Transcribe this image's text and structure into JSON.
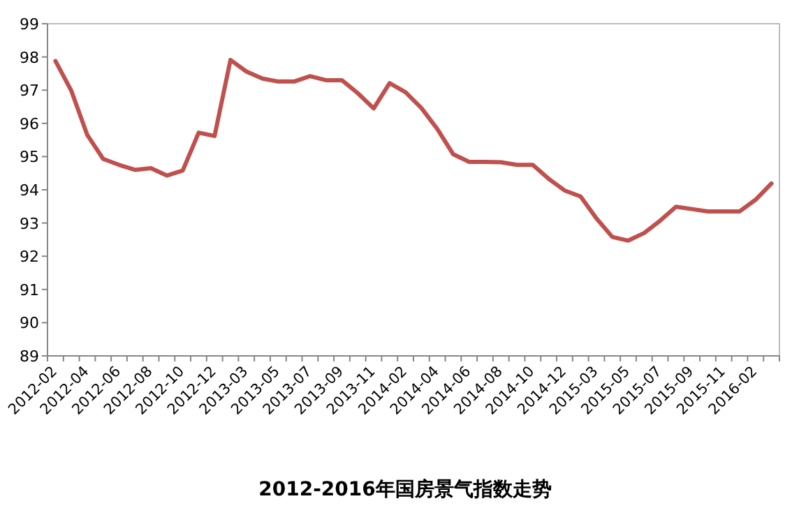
{
  "chart_data": {
    "type": "line",
    "title": "2012-2016年国房景气指数走势",
    "categories": [
      "2012-02",
      null,
      "2012-04",
      null,
      "2012-06",
      null,
      "2012-08",
      null,
      "2012-10",
      null,
      "2012-12",
      null,
      "2013-03",
      null,
      "2013-05",
      null,
      "2013-07",
      null,
      "2013-09",
      null,
      "2013-11",
      null,
      "2014-02",
      null,
      "2014-04",
      null,
      "2014-06",
      null,
      "2014-08",
      null,
      "2014-10",
      null,
      "2014-12",
      null,
      "2015-03",
      null,
      "2015-05",
      null,
      "2015-07",
      null,
      "2015-09",
      null,
      "2015-11",
      null,
      "2016-02",
      null
    ],
    "series": [
      {
        "color": "#c0504d",
        "values": [
          97.88,
          96.98,
          95.65,
          94.93,
          94.75,
          94.6,
          94.65,
          94.43,
          94.58,
          95.72,
          95.62,
          97.91,
          97.56,
          97.35,
          97.26,
          97.26,
          97.42,
          97.3,
          97.3,
          96.91,
          96.45,
          97.21,
          96.94,
          96.46,
          95.83,
          95.07,
          94.84,
          94.84,
          94.83,
          94.75,
          94.75,
          94.33,
          93.98,
          93.8,
          93.14,
          92.58,
          92.47,
          92.7,
          93.07,
          93.49,
          93.42,
          93.35,
          93.35,
          93.35,
          93.7,
          94.19
        ]
      }
    ],
    "ylim": [
      89,
      99
    ],
    "yticks": [
      89,
      90,
      91,
      92,
      93,
      94,
      95,
      96,
      97,
      98,
      99
    ],
    "grid": false,
    "marker": "none",
    "line_style": "solid"
  }
}
